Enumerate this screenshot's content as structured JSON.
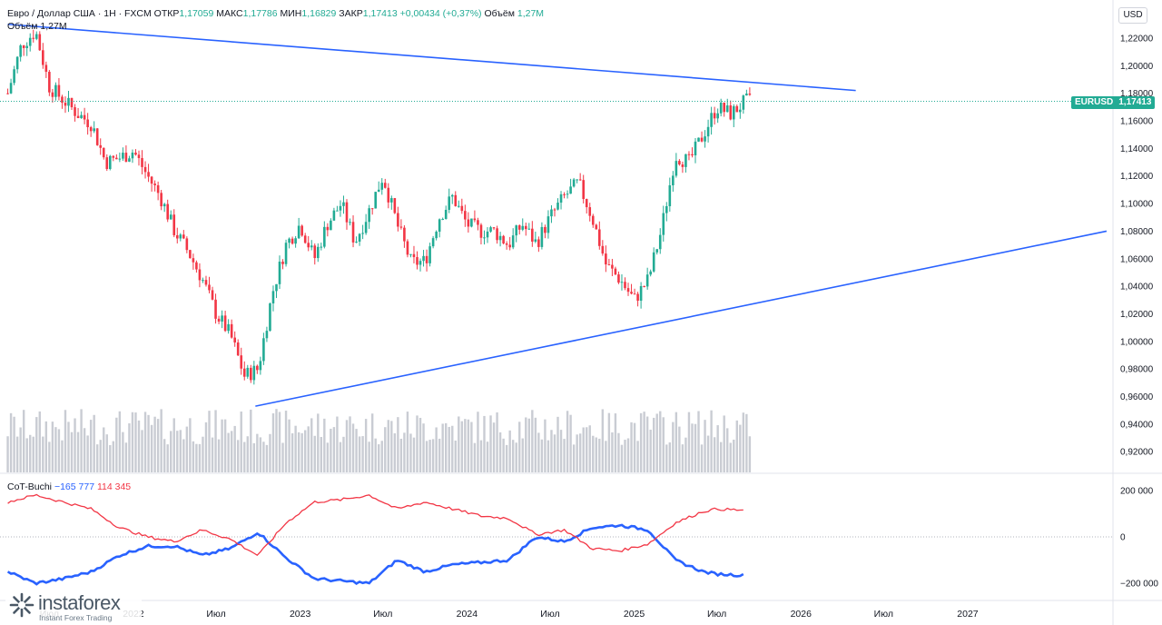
{
  "header": {
    "symbol_line": "Евро / Доллар США · 1Н · FXCM",
    "open_label": "ОТКР",
    "open_value": "1,17059",
    "high_label": "МАКС",
    "high_value": "1,17786",
    "low_label": "МИН",
    "low_value": "1,16829",
    "close_label": "ЗАКР",
    "close_value": "1,17413",
    "change": "+0,00434 (+0,37%)",
    "volume_label": "Объём",
    "volume_value": "1,27M",
    "volume_legend_label": "Объём",
    "volume_legend_value": "1,27M"
  },
  "currency_button": "USD",
  "last_price": {
    "symbol": "EURUSD",
    "value": "1,17413",
    "color": "#22ab94"
  },
  "cot_legend": {
    "name": "CoT-Buchi",
    "blue_value": "−165 777",
    "red_value": "114 345"
  },
  "logo": {
    "name": "instaforex",
    "tagline": "Instant Forex Trading"
  },
  "colors": {
    "up": "#22ab94",
    "down": "#f23645",
    "trendline": "#2962ff",
    "volume": "#c9ccd3",
    "cot_blue": "#2962ff",
    "cot_red": "#f23645",
    "last_price_line": "#22ab94"
  },
  "chart_data": [
    {
      "type": "candlestick",
      "instrument": "EURUSD",
      "timeframe": "1Н",
      "x_axis_labels": [
        "Июл",
        "2022",
        "Июл",
        "2023",
        "Июл",
        "2024",
        "Июл",
        "2025",
        "Июл",
        "2026",
        "Июл",
        "2027"
      ],
      "y_axis_labels": [
        "1,22000",
        "1,20000",
        "1,18000",
        "1,16000",
        "1,14000",
        "1,12000",
        "1,10000",
        "1,08000",
        "1,06000",
        "1,04000",
        "1,02000",
        "1,00000",
        "0,98000",
        "0,96000",
        "0,94000",
        "0,92000"
      ],
      "ylim": [
        0.905,
        1.245
      ],
      "close_anchors": [
        [
          "2021-04-01",
          1.18
        ],
        [
          "2021-05-01",
          1.215
        ],
        [
          "2021-06-01",
          1.225
        ],
        [
          "2021-07-01",
          1.185
        ],
        [
          "2021-08-01",
          1.175
        ],
        [
          "2021-09-01",
          1.165
        ],
        [
          "2021-10-01",
          1.158
        ],
        [
          "2021-11-01",
          1.13
        ],
        [
          "2021-12-01",
          1.133
        ],
        [
          "2022-01-01",
          1.138
        ],
        [
          "2022-02-01",
          1.12
        ],
        [
          "2022-03-01",
          1.105
        ],
        [
          "2022-04-01",
          1.08
        ],
        [
          "2022-05-01",
          1.065
        ],
        [
          "2022-06-01",
          1.045
        ],
        [
          "2022-07-01",
          1.02
        ],
        [
          "2022-08-01",
          1.005
        ],
        [
          "2022-09-01",
          0.975
        ],
        [
          "2022-10-01",
          0.98
        ],
        [
          "2022-11-01",
          1.035
        ],
        [
          "2022-12-01",
          1.07
        ],
        [
          "2023-01-01",
          1.085
        ],
        [
          "2023-02-01",
          1.06
        ],
        [
          "2023-03-01",
          1.085
        ],
        [
          "2023-04-01",
          1.1
        ],
        [
          "2023-05-01",
          1.072
        ],
        [
          "2023-06-01",
          1.095
        ],
        [
          "2023-07-01",
          1.12
        ],
        [
          "2023-08-01",
          1.085
        ],
        [
          "2023-09-01",
          1.057
        ],
        [
          "2023-10-01",
          1.058
        ],
        [
          "2023-11-01",
          1.09
        ],
        [
          "2023-12-01",
          1.105
        ],
        [
          "2024-01-01",
          1.085
        ],
        [
          "2024-02-01",
          1.08
        ],
        [
          "2024-03-01",
          1.08
        ],
        [
          "2024-04-01",
          1.07
        ],
        [
          "2024-05-01",
          1.085
        ],
        [
          "2024-06-01",
          1.071
        ],
        [
          "2024-07-01",
          1.09
        ],
        [
          "2024-08-01",
          1.105
        ],
        [
          "2024-09-01",
          1.115
        ],
        [
          "2024-10-01",
          1.09
        ],
        [
          "2024-11-01",
          1.055
        ],
        [
          "2024-12-01",
          1.045
        ],
        [
          "2025-01-01",
          1.03
        ],
        [
          "2025-02-01",
          1.045
        ],
        [
          "2025-03-01",
          1.08
        ],
        [
          "2025-04-01",
          1.135
        ],
        [
          "2025-05-01",
          1.13
        ],
        [
          "2025-06-01",
          1.15
        ],
        [
          "2025-07-01",
          1.17
        ],
        [
          "2025-08-01",
          1.165
        ],
        [
          "2025-09-01",
          1.174
        ]
      ],
      "volume_series_shown": true
    },
    {
      "type": "line",
      "name": "CoT-Buchi",
      "y_axis_labels": [
        "200 000",
        "0",
        "−200 000"
      ],
      "ylim": [
        -270000,
        270000
      ],
      "series": [
        {
          "color": "#2962ff",
          "points": [
            [
              "2021-04-01",
              -150000
            ],
            [
              "2021-06-01",
              -200000
            ],
            [
              "2021-08-01",
              -180000
            ],
            [
              "2021-10-01",
              -150000
            ],
            [
              "2021-12-01",
              -80000
            ],
            [
              "2022-02-01",
              -40000
            ],
            [
              "2022-04-01",
              -40000
            ],
            [
              "2022-06-01",
              -80000
            ],
            [
              "2022-08-01",
              -50000
            ],
            [
              "2022-10-01",
              20000
            ],
            [
              "2022-12-01",
              -90000
            ],
            [
              "2023-02-01",
              -180000
            ],
            [
              "2023-04-01",
              -190000
            ],
            [
              "2023-06-01",
              -200000
            ],
            [
              "2023-08-01",
              -100000
            ],
            [
              "2023-10-01",
              -150000
            ],
            [
              "2023-12-01",
              -120000
            ],
            [
              "2024-02-01",
              -110000
            ],
            [
              "2024-04-01",
              -100000
            ],
            [
              "2024-06-01",
              0
            ],
            [
              "2024-08-01",
              -20000
            ],
            [
              "2024-10-01",
              40000
            ],
            [
              "2024-12-01",
              50000
            ],
            [
              "2025-02-01",
              30000
            ],
            [
              "2025-04-01",
              -100000
            ],
            [
              "2025-06-01",
              -150000
            ],
            [
              "2025-07-01",
              -160000
            ],
            [
              "2025-09-01",
              -165777
            ]
          ]
        },
        {
          "color": "#f23645",
          "points": [
            [
              "2021-04-01",
              150000
            ],
            [
              "2021-06-01",
              180000
            ],
            [
              "2021-08-01",
              150000
            ],
            [
              "2021-10-01",
              120000
            ],
            [
              "2021-12-01",
              40000
            ],
            [
              "2022-02-01",
              0
            ],
            [
              "2022-04-01",
              -20000
            ],
            [
              "2022-06-01",
              30000
            ],
            [
              "2022-08-01",
              -10000
            ],
            [
              "2022-10-01",
              -80000
            ],
            [
              "2022-12-01",
              60000
            ],
            [
              "2023-02-01",
              150000
            ],
            [
              "2023-04-01",
              160000
            ],
            [
              "2023-06-01",
              180000
            ],
            [
              "2023-08-01",
              120000
            ],
            [
              "2023-10-01",
              150000
            ],
            [
              "2023-12-01",
              120000
            ],
            [
              "2024-02-01",
              90000
            ],
            [
              "2024-04-01",
              80000
            ],
            [
              "2024-06-01",
              10000
            ],
            [
              "2024-08-01",
              30000
            ],
            [
              "2024-10-01",
              -50000
            ],
            [
              "2024-12-01",
              -60000
            ],
            [
              "2025-02-01",
              -30000
            ],
            [
              "2025-04-01",
              60000
            ],
            [
              "2025-06-01",
              110000
            ],
            [
              "2025-07-01",
              120000
            ],
            [
              "2025-09-01",
              114345
            ]
          ]
        }
      ]
    }
  ],
  "trendlines": [
    {
      "from": [
        "2021-04-01",
        1.23
      ],
      "to": [
        "2026-05-01",
        1.182
      ]
    },
    {
      "from": [
        "2022-09-25",
        0.953
      ],
      "to": [
        "2027-11-01",
        1.08
      ]
    }
  ],
  "time_axis": {
    "start": "2021-03-15",
    "end": "2027-11-15"
  }
}
